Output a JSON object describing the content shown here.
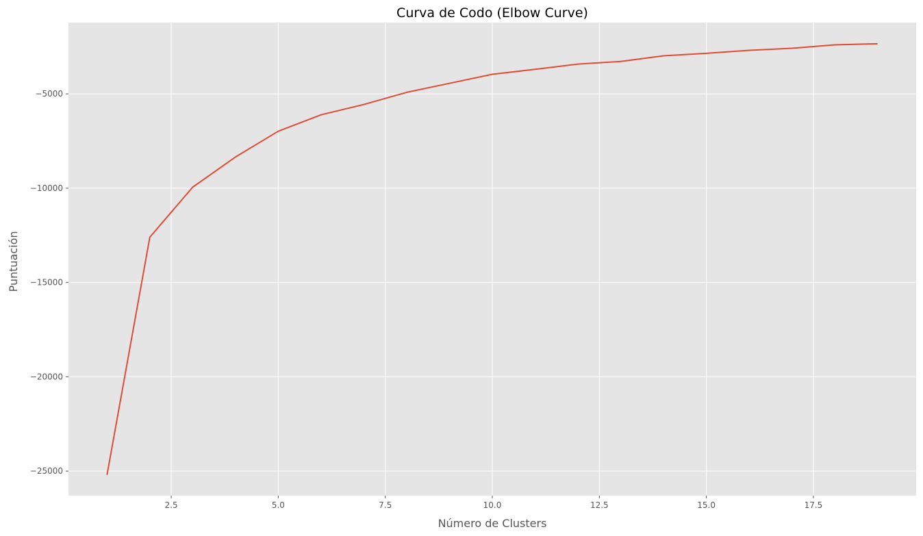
{
  "chart_data": {
    "type": "line",
    "title": "Curva de Codo (Elbow Curve)",
    "xlabel": "Número de Clusters",
    "ylabel": "Puntuación",
    "xlim": [
      0.1,
      19.9
    ],
    "ylim": [
      -26300,
      -1220
    ],
    "x_ticks": [
      2.5,
      5.0,
      7.5,
      10.0,
      12.5,
      15.0,
      17.5
    ],
    "x_tick_labels": [
      "2.5",
      "5.0",
      "7.5",
      "10.0",
      "12.5",
      "15.0",
      "17.5"
    ],
    "y_ticks": [
      -5000,
      -10000,
      -15000,
      -20000,
      -25000
    ],
    "y_tick_labels": [
      "−5000",
      "−10000",
      "−15000",
      "−20000",
      "−25000"
    ],
    "grid": true,
    "background": "#e5e5e5",
    "grid_color": "#ffffff",
    "series": [
      {
        "color": "#e24a33",
        "x": [
          1,
          2,
          3,
          4,
          5,
          6,
          7,
          8,
          9,
          10,
          11,
          12,
          13,
          14,
          15,
          16,
          17,
          18,
          19
        ],
        "y": [
          -25200,
          -12600,
          -9950,
          -8350,
          -6980,
          -6110,
          -5560,
          -4920,
          -4440,
          -3960,
          -3700,
          -3420,
          -3280,
          -2980,
          -2850,
          -2690,
          -2580,
          -2400,
          -2340
        ]
      }
    ]
  }
}
